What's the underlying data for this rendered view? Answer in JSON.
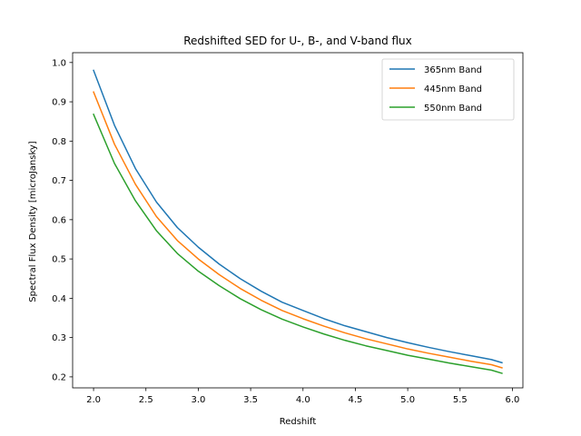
{
  "chart_data": {
    "type": "line",
    "title": "Redshifted SED for U-, B-, and V-band flux",
    "xlabel": "Redshift",
    "ylabel": "Spectral Flux Density [microJansky]",
    "xlim": [
      1.8,
      6.1
    ],
    "ylim": [
      0.172,
      1.025
    ],
    "xticks": [
      2.0,
      2.5,
      3.0,
      3.5,
      4.0,
      4.5,
      5.0,
      5.5,
      6.0
    ],
    "xtick_labels": [
      "2.0",
      "2.5",
      "3.0",
      "3.5",
      "4.0",
      "4.5",
      "5.0",
      "5.5",
      "6.0"
    ],
    "yticks": [
      0.2,
      0.3,
      0.4,
      0.5,
      0.6,
      0.7,
      0.8,
      0.9,
      1.0
    ],
    "ytick_labels": [
      "0.2",
      "0.3",
      "0.4",
      "0.5",
      "0.6",
      "0.7",
      "0.8",
      "0.9",
      "1.0"
    ],
    "grid": false,
    "legend_position": "top-right",
    "x": [
      2.0,
      2.2,
      2.4,
      2.6,
      2.8,
      3.0,
      3.2,
      3.4,
      3.6,
      3.8,
      4.0,
      4.2,
      4.4,
      4.6,
      4.8,
      5.0,
      5.2,
      5.4,
      5.6,
      5.8,
      5.9
    ],
    "series": [
      {
        "name": "365nm Band",
        "color": "#1f77b4",
        "values": [
          0.98,
          0.84,
          0.73,
          0.645,
          0.58,
          0.53,
          0.487,
          0.45,
          0.418,
          0.39,
          0.369,
          0.348,
          0.33,
          0.315,
          0.3,
          0.287,
          0.275,
          0.264,
          0.254,
          0.244,
          0.236
        ]
      },
      {
        "name": "445nm Band",
        "color": "#ff7f0e",
        "values": [
          0.925,
          0.792,
          0.69,
          0.608,
          0.547,
          0.5,
          0.46,
          0.425,
          0.395,
          0.369,
          0.348,
          0.329,
          0.312,
          0.297,
          0.284,
          0.271,
          0.26,
          0.25,
          0.24,
          0.231,
          0.223
        ]
      },
      {
        "name": "550nm Band",
        "color": "#2ca02c",
        "values": [
          0.868,
          0.743,
          0.648,
          0.572,
          0.514,
          0.469,
          0.432,
          0.399,
          0.371,
          0.347,
          0.327,
          0.309,
          0.293,
          0.279,
          0.267,
          0.255,
          0.245,
          0.235,
          0.226,
          0.217,
          0.209
        ]
      }
    ]
  }
}
